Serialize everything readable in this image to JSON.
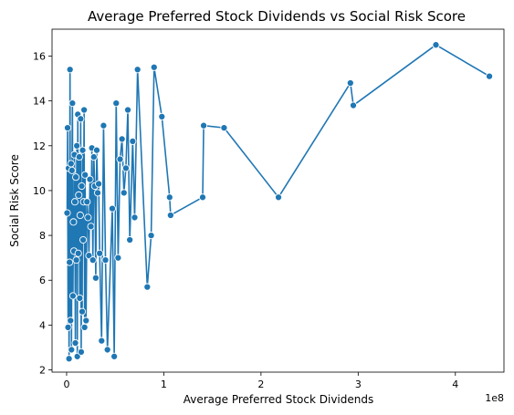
{
  "chart_data": {
    "type": "line",
    "title": "Average Preferred Stock Dividends vs Social Risk Score",
    "xlabel": "Average Preferred Stock Dividends",
    "ylabel": "Social Risk Score",
    "x_offset_label": "1e8",
    "xlim": [
      -0.15,
      4.5
    ],
    "ylim": [
      1.9,
      17.2
    ],
    "x_ticks": [
      0,
      1,
      2,
      3,
      4
    ],
    "x_tick_labels": [
      "0",
      "1",
      "2",
      "3",
      "4"
    ],
    "y_ticks": [
      2,
      4,
      6,
      8,
      10,
      12,
      14,
      16
    ],
    "y_tick_labels": [
      "2",
      "4",
      "6",
      "8",
      "10",
      "12",
      "14",
      "16"
    ],
    "grid": false,
    "series": [
      {
        "color": "#1f77b4",
        "marker": "circle",
        "x": [
          0.005,
          0.01,
          0.015,
          0.02,
          0.025,
          0.03,
          0.035,
          0.04,
          0.045,
          0.05,
          0.055,
          0.06,
          0.065,
          0.07,
          0.075,
          0.08,
          0.085,
          0.09,
          0.095,
          0.1,
          0.105,
          0.11,
          0.115,
          0.12,
          0.125,
          0.13,
          0.135,
          0.14,
          0.145,
          0.15,
          0.155,
          0.16,
          0.165,
          0.17,
          0.175,
          0.18,
          0.185,
          0.19,
          0.2,
          0.21,
          0.22,
          0.23,
          0.24,
          0.25,
          0.26,
          0.27,
          0.28,
          0.29,
          0.3,
          0.31,
          0.32,
          0.33,
          0.34,
          0.36,
          0.38,
          0.4,
          0.42,
          0.47,
          0.49,
          0.51,
          0.53,
          0.55,
          0.57,
          0.59,
          0.61,
          0.63,
          0.65,
          0.68,
          0.7,
          0.73,
          0.83,
          0.87,
          0.9,
          0.98,
          1.06,
          1.07,
          1.4,
          1.41,
          1.62,
          2.18,
          2.92,
          2.95,
          3.8,
          4.35
        ],
        "y": [
          9.0,
          12.8,
          3.9,
          11.0,
          2.5,
          6.8,
          15.4,
          4.2,
          11.2,
          2.9,
          10.9,
          13.9,
          5.3,
          8.6,
          7.3,
          11.6,
          9.5,
          3.2,
          10.6,
          6.9,
          12.0,
          2.6,
          13.4,
          7.2,
          9.8,
          11.5,
          5.2,
          8.9,
          13.2,
          2.8,
          10.2,
          4.6,
          11.8,
          7.8,
          9.5,
          13.6,
          3.9,
          10.7,
          4.2,
          9.5,
          8.8,
          7.1,
          10.5,
          8.4,
          11.9,
          6.9,
          11.5,
          10.2,
          6.1,
          11.8,
          9.9,
          10.3,
          7.2,
          3.3,
          12.9,
          6.9,
          2.9,
          9.2,
          2.6,
          13.9,
          7.0,
          11.4,
          12.3,
          9.9,
          11.0,
          13.6,
          7.8,
          12.2,
          8.8,
          15.4,
          5.7,
          8.0,
          15.5,
          13.3,
          9.7,
          8.9,
          9.7,
          12.9,
          12.8,
          9.7,
          14.8,
          13.8,
          16.5,
          15.1
        ]
      }
    ]
  }
}
